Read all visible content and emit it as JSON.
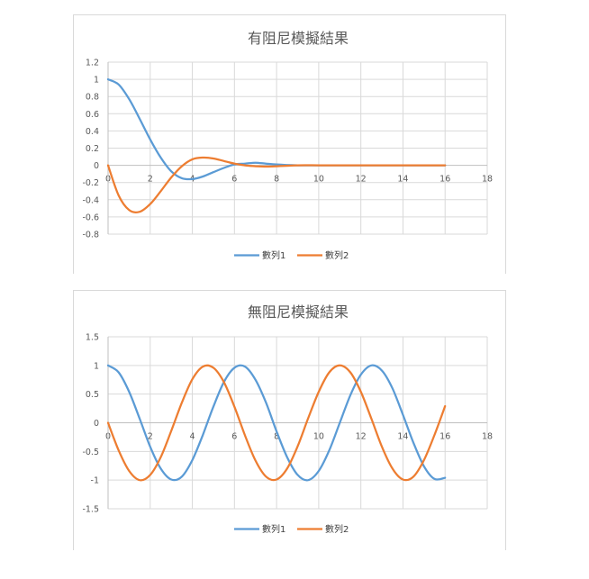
{
  "chart_data": [
    {
      "type": "scatter",
      "title": "有阻尼模擬結果",
      "xlim": [
        0,
        18
      ],
      "ylim": [
        -0.8,
        1.2
      ],
      "x_ticks": [
        "0",
        "2",
        "4",
        "6",
        "8",
        "10",
        "12",
        "14",
        "16",
        "18"
      ],
      "y_ticks": [
        "1.2",
        "1",
        "0.8",
        "0.6",
        "0.4",
        "0.2",
        "0",
        "-0.2",
        "-0.4",
        "-0.6",
        "-0.8"
      ],
      "grid": true,
      "legend_position": "bottom",
      "series": [
        {
          "name": "數列1",
          "color": "#5b9bd5",
          "x": [
            0,
            0.5,
            1,
            1.5,
            2,
            2.5,
            3,
            3.5,
            4,
            4.5,
            5,
            5.5,
            6,
            6.5,
            7,
            7.5,
            8,
            9,
            10,
            11,
            12,
            13,
            14,
            15,
            16
          ],
          "y": [
            1,
            0.94,
            0.77,
            0.54,
            0.3,
            0.09,
            -0.07,
            -0.15,
            -0.16,
            -0.13,
            -0.08,
            -0.03,
            0.01,
            0.02,
            0.03,
            0.02,
            0.01,
            0,
            0,
            0,
            0,
            0,
            0,
            0,
            0
          ]
        },
        {
          "name": "數列2",
          "color": "#ed7d31",
          "x": [
            0,
            0.5,
            1,
            1.5,
            2,
            2.5,
            3,
            3.5,
            4,
            4.5,
            5,
            5.5,
            6,
            6.5,
            7,
            7.5,
            8,
            9,
            10,
            11,
            12,
            13,
            14,
            15,
            16
          ],
          "y": [
            0,
            -0.35,
            -0.52,
            -0.54,
            -0.45,
            -0.3,
            -0.14,
            -0.01,
            0.07,
            0.09,
            0.08,
            0.05,
            0.02,
            0,
            -0.01,
            -0.015,
            -0.01,
            0,
            0,
            0,
            0,
            0,
            0,
            0,
            0
          ]
        }
      ]
    },
    {
      "type": "scatter",
      "title": "無阻尼模擬結果",
      "xlim": [
        0,
        18
      ],
      "ylim": [
        -1.5,
        1.5
      ],
      "x_ticks": [
        "0",
        "2",
        "4",
        "6",
        "8",
        "10",
        "12",
        "14",
        "16",
        "18"
      ],
      "y_ticks": [
        "1.5",
        "1",
        "0.5",
        "0",
        "-0.5",
        "-1",
        "-1.5"
      ],
      "grid": true,
      "legend_position": "bottom",
      "series": [
        {
          "name": "數列1",
          "color": "#5b9bd5",
          "x": [
            0,
            0.5,
            1,
            1.5,
            2,
            2.5,
            3,
            3.5,
            4,
            4.5,
            5,
            5.5,
            6,
            6.5,
            7,
            7.5,
            8,
            8.5,
            9,
            9.5,
            10,
            10.5,
            11,
            11.5,
            12,
            12.5,
            13,
            13.5,
            14,
            14.5,
            15,
            15.5,
            16
          ],
          "y": [
            1,
            0.88,
            0.54,
            0.07,
            -0.42,
            -0.8,
            -0.99,
            -0.94,
            -0.65,
            -0.21,
            0.28,
            0.71,
            0.96,
            0.98,
            0.75,
            0.35,
            -0.15,
            -0.6,
            -0.91,
            -1,
            -0.84,
            -0.48,
            0,
            0.48,
            0.84,
            1,
            0.91,
            0.6,
            0.14,
            -0.35,
            -0.76,
            -0.98,
            -0.96
          ]
        },
        {
          "name": "數列2",
          "color": "#ed7d31",
          "x": [
            0,
            0.5,
            1,
            1.5,
            2,
            2.5,
            3,
            3.5,
            4,
            4.5,
            5,
            5.5,
            6,
            6.5,
            7,
            7.5,
            8,
            8.5,
            9,
            9.5,
            10,
            10.5,
            11,
            11.5,
            12,
            12.5,
            13,
            13.5,
            14,
            14.5,
            15,
            15.5,
            16
          ],
          "y": [
            0,
            -0.48,
            -0.84,
            -1,
            -0.91,
            -0.6,
            -0.14,
            0.35,
            0.76,
            0.98,
            0.96,
            0.71,
            0.28,
            -0.22,
            -0.66,
            -0.94,
            -0.99,
            -0.8,
            -0.41,
            0.08,
            0.54,
            0.88,
            1,
            0.88,
            0.54,
            0.07,
            -0.42,
            -0.8,
            -0.99,
            -0.94,
            -0.65,
            -0.21,
            0.29
          ]
        }
      ]
    }
  ]
}
